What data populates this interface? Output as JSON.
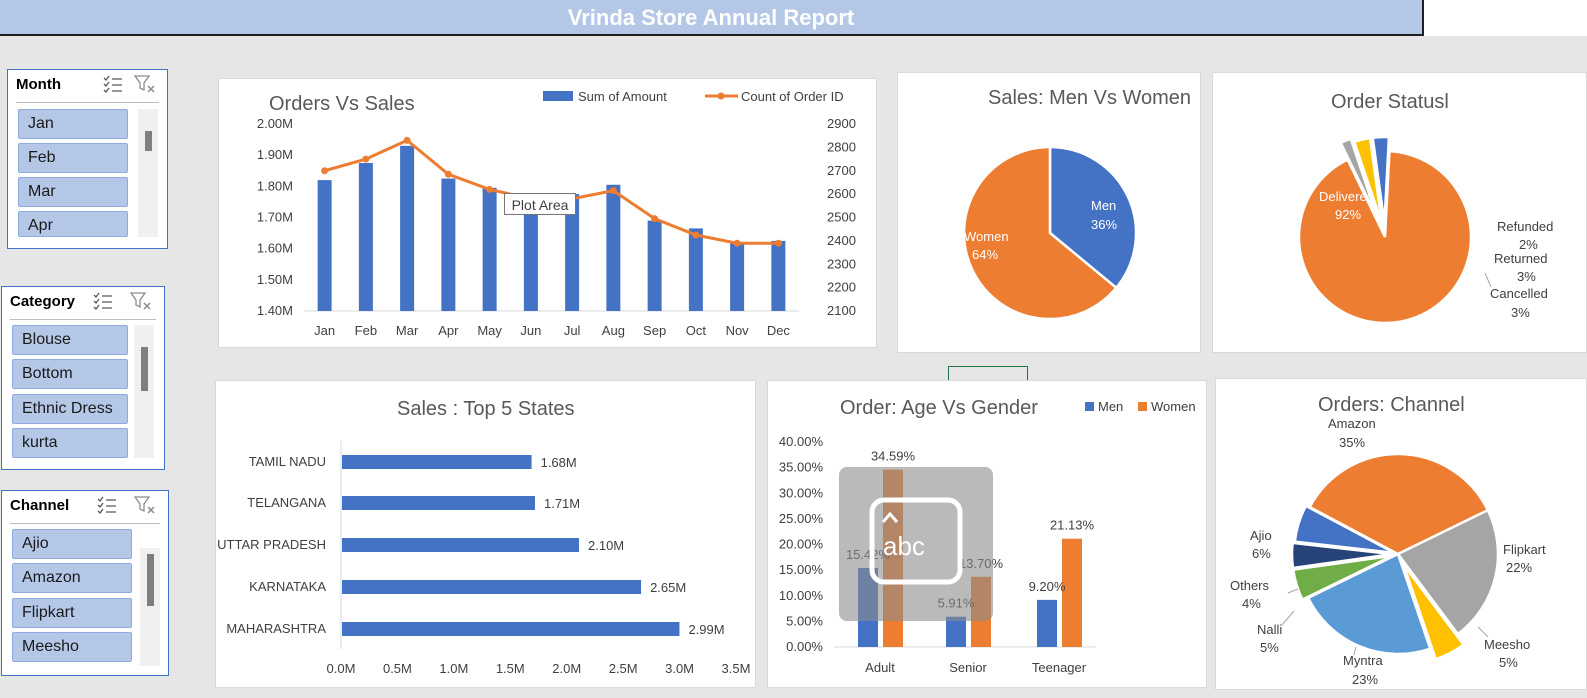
{
  "title": "Vrinda Store Annual Report",
  "slicers": {
    "month": {
      "title": "Month",
      "items": [
        "Jan",
        "Feb",
        "Mar",
        "Apr"
      ]
    },
    "category": {
      "title": "Category",
      "items": [
        "Blouse",
        "Bottom",
        "Ethnic Dress",
        "kurta"
      ]
    },
    "channel": {
      "title": "Channel",
      "items": [
        "Ajio",
        "Amazon",
        "Flipkart",
        "Meesho"
      ]
    }
  },
  "tooltip": "Plot Area",
  "icons": [
    "multi-select-icon",
    "clear-filter-icon",
    "text-input-abc-icon"
  ],
  "colors": {
    "blue": "#4472c4",
    "orange": "#ed7d31",
    "gray": "#a5a5a5",
    "yellow": "#ffc000",
    "lightblue": "#5b9bd5",
    "green": "#70ad47",
    "navy": "#264478",
    "title_bar": "#b4c7e7"
  },
  "chart_data": [
    {
      "type": "bar",
      "title": "Orders Vs Sales",
      "categories": [
        "Jan",
        "Feb",
        "Mar",
        "Apr",
        "May",
        "Jun",
        "Jul",
        "Aug",
        "Sep",
        "Oct",
        "Nov",
        "Dec"
      ],
      "series": [
        {
          "name": "Sum of Amount",
          "kind": "bar",
          "axis": "left",
          "values": [
            1.82,
            1.875,
            1.93,
            1.825,
            1.795,
            1.73,
            1.775,
            1.805,
            1.69,
            1.665,
            1.62,
            1.625
          ]
        },
        {
          "name": "Count of Order ID",
          "kind": "line",
          "axis": "right",
          "values": [
            2700,
            2750,
            2830,
            2685,
            2620,
            2580,
            2580,
            2615,
            2495,
            2425,
            2390,
            2390
          ]
        }
      ],
      "y_left": {
        "ylim": [
          1.4,
          2.0
        ],
        "ticks": [
          "1.40M",
          "1.50M",
          "1.60M",
          "1.70M",
          "1.80M",
          "1.90M",
          "2.00M"
        ]
      },
      "y_right": {
        "ylim": [
          2100,
          2900
        ],
        "ticks": [
          "2100",
          "2200",
          "2300",
          "2400",
          "2500",
          "2600",
          "2700",
          "2800",
          "2900"
        ]
      },
      "legend": "top"
    },
    {
      "type": "pie",
      "title": "Sales: Men Vs Women",
      "slices": [
        {
          "label": "Men",
          "percent": "36%",
          "value": 36
        },
        {
          "label": "Women",
          "percent": "64%",
          "value": 64
        }
      ]
    },
    {
      "type": "pie",
      "title": "Order Statusl",
      "slices": [
        {
          "label": "Delivered",
          "percent": "92%",
          "value": 92
        },
        {
          "label": "Refunded",
          "percent": "2%",
          "value": 2
        },
        {
          "label": "Returned",
          "percent": "3%",
          "value": 3
        },
        {
          "label": "Cancelled",
          "percent": "3%",
          "value": 3
        }
      ]
    },
    {
      "type": "bar",
      "orientation": "horizontal",
      "title": "Sales : Top 5 States",
      "categories": [
        "TAMIL NADU",
        "TELANGANA",
        "UTTAR PRADESH",
        "KARNATAKA",
        "MAHARASHTRA"
      ],
      "values": [
        1.68,
        1.71,
        2.1,
        2.65,
        2.99
      ],
      "data_labels": [
        "1.68M",
        "1.71M",
        "2.10M",
        "2.65M",
        "2.99M"
      ],
      "xlim": [
        0,
        3.5
      ],
      "x_ticks": [
        "0.0M",
        "0.5M",
        "1.0M",
        "1.5M",
        "2.0M",
        "2.5M",
        "3.0M",
        "3.5M"
      ]
    },
    {
      "type": "bar",
      "title": "Order: Age Vs Gender",
      "categories": [
        "Adult",
        "Senior",
        "Teenager"
      ],
      "series": [
        {
          "name": "Men",
          "values": [
            15.42,
            5.91,
            9.2
          ],
          "labels": [
            "15.42%",
            "5.91%",
            "9.20%"
          ]
        },
        {
          "name": "Women",
          "values": [
            34.59,
            13.7,
            21.13
          ],
          "labels": [
            "34.59%",
            "13.70%",
            "21.13%"
          ]
        }
      ],
      "ylim": [
        0,
        40
      ],
      "y_ticks": [
        "0.00%",
        "5.00%",
        "10.00%",
        "15.00%",
        "20.00%",
        "25.00%",
        "30.00%",
        "35.00%",
        "40.00%"
      ],
      "legend": "top-right"
    },
    {
      "type": "pie",
      "title": "Orders: Channel",
      "slices": [
        {
          "label": "Amazon",
          "percent": "35%",
          "value": 35
        },
        {
          "label": "Flipkart",
          "percent": "22%",
          "value": 22
        },
        {
          "label": "Meesho",
          "percent": "5%",
          "value": 5
        },
        {
          "label": "Myntra",
          "percent": "23%",
          "value": 23
        },
        {
          "label": "Nalli",
          "percent": "5%",
          "value": 5
        },
        {
          "label": "Others",
          "percent": "4%",
          "value": 4
        },
        {
          "label": "Ajio",
          "percent": "6%",
          "value": 6
        }
      ]
    }
  ]
}
